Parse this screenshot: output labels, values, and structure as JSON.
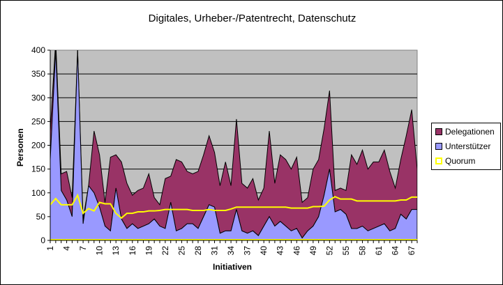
{
  "chart_data": {
    "type": "area",
    "stacked": true,
    "title": "Digitales, Urheber-/Patentrecht, Datenschutz",
    "xlabel": "Initiativen",
    "ylabel": "Personen",
    "ylim": [
      0,
      400
    ],
    "yticks": [
      0,
      50,
      100,
      150,
      200,
      250,
      300,
      350,
      400
    ],
    "xtick_labels": [
      "1",
      "4",
      "7",
      "10",
      "13",
      "16",
      "19",
      "22",
      "25",
      "28",
      "31",
      "34",
      "37",
      "40",
      "43",
      "46",
      "49",
      "52",
      "55",
      "58",
      "61",
      "64",
      "67"
    ],
    "x": [
      1,
      2,
      3,
      4,
      5,
      6,
      7,
      8,
      9,
      10,
      11,
      12,
      13,
      14,
      15,
      16,
      17,
      18,
      19,
      20,
      21,
      22,
      23,
      24,
      25,
      26,
      27,
      28,
      29,
      30,
      31,
      32,
      33,
      34,
      35,
      36,
      37,
      38,
      39,
      40,
      41,
      42,
      43,
      44,
      45,
      46,
      47,
      48,
      49,
      50,
      51,
      52,
      53,
      54,
      55,
      56,
      57,
      58,
      59,
      60,
      61,
      62,
      63,
      64,
      65,
      66,
      67,
      68
    ],
    "legend_position": "right",
    "grid": true,
    "series": [
      {
        "name": "Delegationen",
        "color": "#993366",
        "values": [
          60,
          400,
          35,
          60,
          40,
          0,
          10,
          0,
          130,
          110,
          50,
          155,
          70,
          120,
          95,
          60,
          80,
          80,
          105,
          45,
          45,
          105,
          55,
          150,
          140,
          110,
          105,
          120,
          130,
          145,
          115,
          100,
          145,
          95,
          190,
          100,
          95,
          110,
          75,
          80,
          180,
          90,
          140,
          140,
          130,
          150,
          75,
          70,
          120,
          120,
          140,
          165,
          45,
          45,
          50,
          155,
          135,
          160,
          130,
          140,
          135,
          155,
          125,
          85,
          115,
          175,
          210,
          85
        ]
      },
      {
        "name": "Unterstützer",
        "color": "#9999FF",
        "values": [
          170,
          400,
          105,
          85,
          50,
          400,
          35,
          115,
          100,
          70,
          30,
          20,
          110,
          45,
          25,
          35,
          25,
          30,
          35,
          45,
          30,
          25,
          80,
          20,
          25,
          35,
          35,
          25,
          50,
          75,
          70,
          15,
          20,
          20,
          65,
          20,
          15,
          20,
          10,
          30,
          50,
          30,
          40,
          30,
          20,
          25,
          5,
          20,
          30,
          50,
          95,
          150,
          60,
          65,
          55,
          25,
          25,
          30,
          20,
          25,
          30,
          35,
          20,
          25,
          55,
          45,
          65,
          65
        ]
      },
      {
        "name": "Quorum",
        "color": "#FFFF00",
        "type": "line",
        "values": [
          75,
          88,
          75,
          75,
          75,
          95,
          57,
          67,
          62,
          80,
          77,
          77,
          57,
          47,
          57,
          57,
          60,
          60,
          62,
          62,
          63,
          65,
          65,
          65,
          65,
          65,
          63,
          63,
          63,
          65,
          63,
          63,
          63,
          66,
          70,
          70,
          70,
          70,
          70,
          70,
          70,
          70,
          70,
          70,
          68,
          68,
          68,
          68,
          71,
          71,
          72,
          85,
          92,
          87,
          87,
          87,
          83,
          83,
          83,
          83,
          83,
          83,
          83,
          83,
          85,
          85,
          91,
          91
        ]
      }
    ]
  },
  "legend": {
    "items": [
      {
        "label": "Delegationen",
        "color": "#993366"
      },
      {
        "label": "Unterstützer",
        "color": "#9999FF"
      },
      {
        "label": "Quorum",
        "color": "#FFFF00"
      }
    ]
  },
  "plot": {
    "background": "#C0C0C0"
  }
}
